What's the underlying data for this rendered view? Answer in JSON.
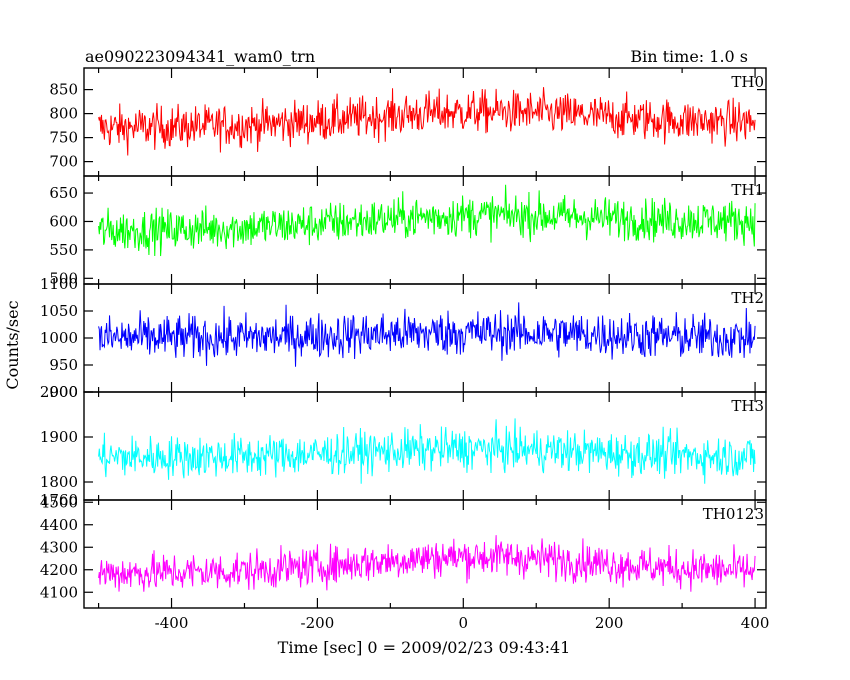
{
  "header": {
    "left": "ae090223094341_wam0_trn",
    "right": "Bin time: 1.0 s"
  },
  "chart_data": {
    "type": "line",
    "xlabel": "Time [sec] 0 = 2009/02/23 09:43:41",
    "ylabel": "Counts/sec",
    "bin_time_s": 1.0,
    "x_range_data": [
      -500,
      400
    ],
    "xlim": [
      -520,
      415
    ],
    "x_ticks": [
      -400,
      -200,
      0,
      200,
      400
    ],
    "grid": false,
    "series": [
      {
        "name": "TH0",
        "color": "#ff0000",
        "ylim": [
          670,
          895
        ],
        "y_ticks": [
          700,
          750,
          800,
          850
        ],
        "mean": 770,
        "trend_end": 780,
        "bump": 28,
        "noise": 36
      },
      {
        "name": "TH1",
        "color": "#00ff00",
        "ylim": [
          490,
          680
        ],
        "y_ticks": [
          500,
          550,
          600,
          650
        ],
        "mean": 583,
        "trend_end": 600,
        "bump": 18,
        "noise": 30
      },
      {
        "name": "TH2",
        "color": "#0000ff",
        "ylim": [
          900,
          1100
        ],
        "y_ticks": [
          900,
          950,
          1000,
          1050,
          1100
        ],
        "mean": 1000,
        "trend_end": 1000,
        "bump": 10,
        "noise": 34
      },
      {
        "name": "TH3",
        "color": "#00ffff",
        "ylim": [
          1760,
          2000
        ],
        "y_ticks": [
          1760,
          1800,
          1900,
          2000
        ],
        "mean": 1855,
        "trend_end": 1855,
        "bump": 18,
        "noise": 38
      },
      {
        "name": "TH0123",
        "color": "#ff00ff",
        "ylim": [
          4030,
          4510
        ],
        "y_ticks": [
          4100,
          4200,
          4300,
          4400,
          4500
        ],
        "mean": 4185,
        "trend_end": 4190,
        "bump": 70,
        "noise": 70
      }
    ]
  }
}
